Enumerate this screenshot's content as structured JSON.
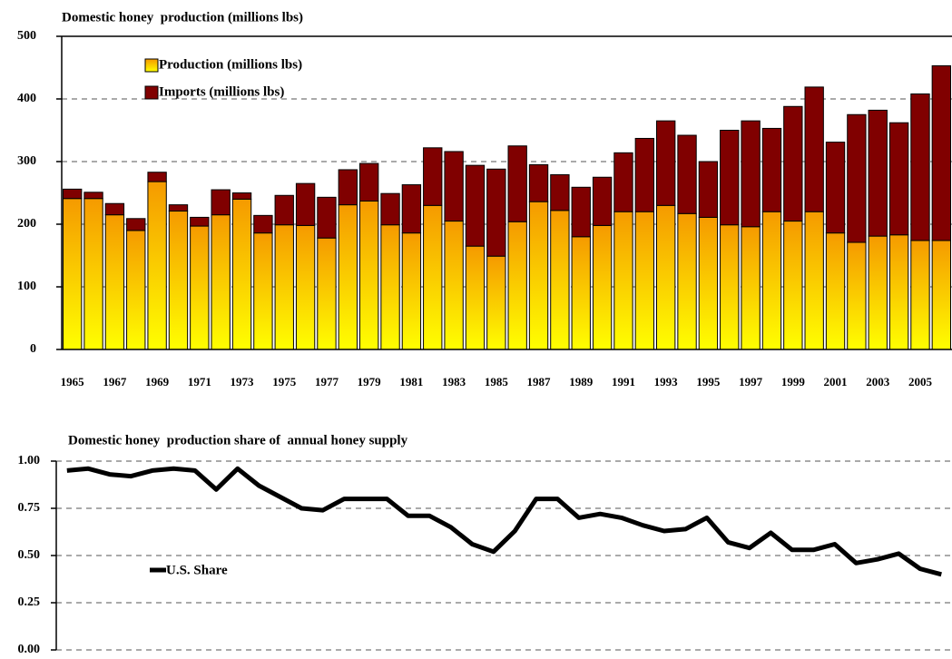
{
  "chart_data": [
    {
      "type": "bar",
      "stacked": true,
      "title": "Domestic honey  production (millions lbs)",
      "categories": [
        "1965",
        null,
        "1967",
        null,
        "1969",
        null,
        "1971",
        null,
        "1973",
        null,
        "1975",
        null,
        "1977",
        null,
        "1979",
        null,
        "1981",
        null,
        "1983",
        null,
        "1985",
        null,
        "1987",
        null,
        "1989",
        null,
        "1991",
        null,
        "1993",
        null,
        "1995",
        null,
        "1997",
        null,
        "1999",
        null,
        "2001",
        null,
        "2003",
        null,
        "2005",
        null
      ],
      "series": [
        {
          "name": "Production (millions lbs)",
          "color": "#f59a00",
          "values": [
            241,
            241,
            215,
            190,
            268,
            221,
            197,
            215,
            240,
            186,
            199,
            198,
            178,
            231,
            237,
            199,
            186,
            230,
            205,
            165,
            149,
            204,
            236,
            222,
            180,
            198,
            220,
            220,
            230,
            217,
            211,
            199,
            196,
            220,
            205,
            220,
            186,
            171,
            181,
            183,
            174,
            174
          ]
        },
        {
          "name": "Imports (millions lbs)",
          "color": "#800000",
          "values": [
            15,
            10,
            18,
            19,
            15,
            10,
            14,
            40,
            10,
            28,
            47,
            67,
            65,
            56,
            60,
            50,
            77,
            92,
            111,
            129,
            139,
            121,
            59,
            57,
            79,
            77,
            94,
            117,
            135,
            125,
            89,
            151,
            169,
            133,
            183,
            199,
            145,
            204,
            201,
            179,
            234,
            279
          ]
        }
      ],
      "ylim": [
        0,
        500
      ],
      "yticks": [
        0,
        100,
        200,
        300,
        400,
        500
      ],
      "grid": true,
      "legend": "upper left"
    },
    {
      "type": "line",
      "title": "Domestic honey  production share of  annual honey supply",
      "series": [
        {
          "name": "U.S. Share",
          "color": "#000000",
          "values": [
            0.95,
            0.96,
            0.93,
            0.92,
            0.95,
            0.96,
            0.95,
            0.85,
            0.96,
            0.87,
            0.81,
            0.75,
            0.74,
            0.8,
            0.8,
            0.8,
            0.71,
            0.71,
            0.65,
            0.56,
            0.52,
            0.63,
            0.8,
            0.8,
            0.7,
            0.72,
            0.7,
            0.66,
            0.63,
            0.64,
            0.7,
            0.57,
            0.54,
            0.62,
            0.53,
            0.53,
            0.56,
            0.46,
            0.48,
            0.51,
            0.43,
            0.4
          ]
        }
      ],
      "ylim": [
        0,
        1
      ],
      "yticks": [
        {
          "value": 0,
          "label": "0.00"
        },
        {
          "value": 0.25,
          "label": "0.25"
        },
        {
          "value": 0.5,
          "label": "0.50"
        },
        {
          "value": 0.75,
          "label": "0.75"
        },
        {
          "value": 1,
          "label": "1.00"
        }
      ],
      "grid": true,
      "legend": "lower left"
    }
  ]
}
